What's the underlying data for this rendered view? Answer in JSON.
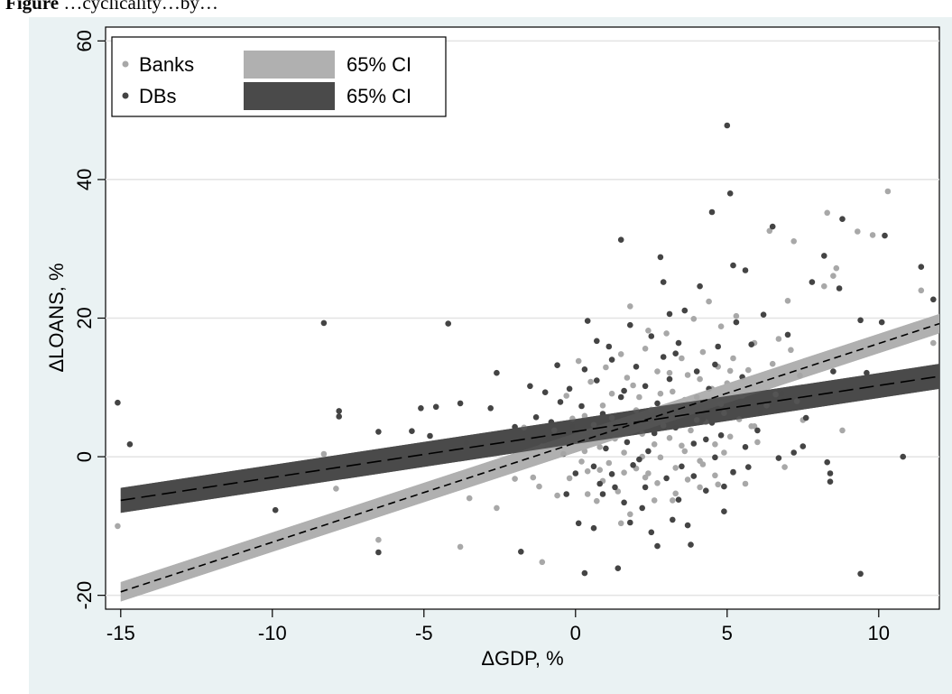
{
  "caption": {
    "bold": "Figure",
    "text": "…cyclicality…by…"
  },
  "chart_data": {
    "type": "scatter",
    "xlabel": "ΔGDP, %",
    "ylabel": "ΔLOANS, %",
    "xlim": [
      -15.5,
      12
    ],
    "ylim": [
      -22,
      62
    ],
    "xticks": [
      -15,
      -10,
      -5,
      0,
      5,
      10
    ],
    "yticks": [
      -20,
      0,
      20,
      40,
      60
    ],
    "grid": "horizontal",
    "legend_position": "top-left",
    "legend": [
      {
        "label": "Banks",
        "kind": "marker",
        "color": "#a8a8a8"
      },
      {
        "label": "65% CI",
        "kind": "band",
        "color": "#b0b0b0"
      },
      {
        "label": "DBs",
        "kind": "marker",
        "color": "#444444"
      },
      {
        "label": "65% CI",
        "kind": "band",
        "color": "#4a4a4a"
      }
    ],
    "series": [
      {
        "name": "Banks",
        "color": "#a8a8a8",
        "fit": {
          "x0": -15,
          "y0": -19.5,
          "x1": 12,
          "y1": 19.2,
          "ci_halfwidth": 1.4,
          "band_color": "#b0b0b0"
        },
        "points": [
          [
            -15.1,
            -10.0
          ],
          [
            -8.3,
            0.4
          ],
          [
            -7.9,
            -4.6
          ],
          [
            -6.5,
            -12.0
          ],
          [
            -6.2,
            -6.3
          ],
          [
            -4.7,
            -4.3
          ],
          [
            -4.1,
            -3.6
          ],
          [
            -3.8,
            -13.0
          ],
          [
            -3.5,
            -6.0
          ],
          [
            -2.6,
            -7.4
          ],
          [
            -2.0,
            -3.2
          ],
          [
            -1.4,
            -3.0
          ],
          [
            -1.1,
            -15.2
          ],
          [
            -0.6,
            -5.6
          ],
          [
            0.4,
            -5.4
          ],
          [
            0.7,
            -6.4
          ],
          [
            1.2,
            5.6
          ],
          [
            1.5,
            -9.6
          ],
          [
            1.8,
            -8.3
          ],
          [
            2.3,
            -3.0
          ],
          [
            2.7,
            -3.8
          ],
          [
            3.2,
            -6.3
          ],
          [
            3.7,
            -3.3
          ],
          [
            4.1,
            -4.4
          ],
          [
            4.7,
            -4.0
          ],
          [
            5.2,
            -2.3
          ],
          [
            -1.7,
            4.2
          ],
          [
            -1.1,
            1.5
          ],
          [
            -0.7,
            3.8
          ],
          [
            -0.3,
            8.8
          ],
          [
            -0.1,
            5.5
          ],
          [
            0.0,
            1.9
          ],
          [
            0.1,
            13.8
          ],
          [
            0.3,
            0.8
          ],
          [
            0.5,
            10.8
          ],
          [
            0.6,
            3.4
          ],
          [
            0.8,
            1.4
          ],
          [
            0.9,
            7.4
          ],
          [
            1.1,
            -0.9
          ],
          [
            1.2,
            9.1
          ],
          [
            1.3,
            2.6
          ],
          [
            1.5,
            14.8
          ],
          [
            1.6,
            0.6
          ],
          [
            1.7,
            11.4
          ],
          [
            1.8,
            21.7
          ],
          [
            1.9,
            5.1
          ],
          [
            2.0,
            -1.7
          ],
          [
            2.1,
            8.6
          ],
          [
            2.2,
            3.3
          ],
          [
            2.3,
            15.6
          ],
          [
            2.4,
            -2.4
          ],
          [
            2.5,
            6.8
          ],
          [
            2.6,
            1.8
          ],
          [
            2.7,
            12.3
          ],
          [
            2.8,
            -0.1
          ],
          [
            2.9,
            4.5
          ],
          [
            3.0,
            17.8
          ],
          [
            3.1,
            2.7
          ],
          [
            3.2,
            9.4
          ],
          [
            3.3,
            -1.6
          ],
          [
            3.4,
            6.0
          ],
          [
            3.5,
            14.2
          ],
          [
            3.6,
            0.8
          ],
          [
            3.7,
            11.8
          ],
          [
            3.8,
            3.8
          ],
          [
            3.9,
            19.9
          ],
          [
            4.0,
            7.8
          ],
          [
            4.1,
            -0.6
          ],
          [
            4.2,
            15.1
          ],
          [
            4.3,
            5.0
          ],
          [
            4.4,
            22.4
          ],
          [
            4.5,
            9.8
          ],
          [
            4.6,
            1.8
          ],
          [
            4.7,
            13.0
          ],
          [
            4.8,
            18.8
          ],
          [
            4.9,
            6.3
          ],
          [
            5.0,
            10.6
          ],
          [
            5.1,
            2.9
          ],
          [
            5.2,
            14.2
          ],
          [
            5.3,
            20.3
          ],
          [
            5.5,
            8.8
          ],
          [
            5.7,
            12.5
          ],
          [
            5.8,
            4.4
          ],
          [
            5.9,
            16.4
          ],
          [
            6.1,
            10.2
          ],
          [
            6.3,
            7.4
          ],
          [
            6.4,
            32.6
          ],
          [
            6.5,
            13.4
          ],
          [
            6.7,
            17.0
          ],
          [
            6.8,
            10.9
          ],
          [
            7.0,
            22.5
          ],
          [
            7.1,
            15.4
          ],
          [
            7.2,
            31.1
          ],
          [
            7.3,
            8.0
          ],
          [
            7.5,
            5.3
          ],
          [
            8.2,
            24.6
          ],
          [
            8.3,
            35.2
          ],
          [
            8.5,
            26.1
          ],
          [
            8.6,
            27.2
          ],
          [
            8.8,
            3.8
          ],
          [
            9.3,
            32.5
          ],
          [
            9.8,
            32.0
          ],
          [
            10.3,
            38.3
          ],
          [
            11.4,
            24.0
          ],
          [
            11.8,
            16.4
          ],
          [
            -1.2,
            -4.3
          ],
          [
            0.2,
            -0.7
          ],
          [
            0.9,
            -3.5
          ],
          [
            1.9,
            10.3
          ],
          [
            2.4,
            18.2
          ],
          [
            3.3,
            -5.3
          ],
          [
            4.1,
            11.2
          ],
          [
            4.8,
            7.6
          ],
          [
            5.6,
            -3.9
          ],
          [
            6.0,
            2.1
          ],
          [
            6.9,
            -1.5
          ],
          [
            0.4,
            -2.1
          ],
          [
            0.6,
            4.6
          ],
          [
            1.0,
            12.9
          ],
          [
            1.4,
            -5.0
          ],
          [
            2.0,
            6.7
          ],
          [
            2.6,
            -6.3
          ],
          [
            3.1,
            12.1
          ],
          [
            3.6,
            8.2
          ],
          [
            4.2,
            -1.1
          ],
          [
            4.9,
            0.6
          ],
          [
            5.4,
            5.4
          ],
          [
            -0.4,
            1.1
          ],
          [
            -0.2,
            -3.1
          ],
          [
            0.3,
            5.9
          ],
          [
            0.8,
            -1.9
          ],
          [
            1.1,
            3.9
          ],
          [
            1.6,
            -2.3
          ],
          [
            2.2,
            0.0
          ],
          [
            2.8,
            9.1
          ],
          [
            3.5,
            1.6
          ],
          [
            4.0,
            5.3
          ],
          [
            4.6,
            -2.7
          ],
          [
            5.1,
            12.4
          ],
          [
            5.9,
            4.4
          ],
          [
            6.6,
            9.0
          ]
        ]
      },
      {
        "name": "DBs",
        "color": "#444444",
        "fit": {
          "x0": -15,
          "y0": -6.3,
          "x1": 12,
          "y1": 11.6,
          "ci_halfwidth": 1.8,
          "band_color": "#4a4a4a"
        },
        "points": [
          [
            -15.1,
            7.8
          ],
          [
            -14.7,
            1.8
          ],
          [
            -9.9,
            -7.7
          ],
          [
            -8.3,
            19.3
          ],
          [
            -7.8,
            6.6
          ],
          [
            -7.8,
            5.8
          ],
          [
            -6.5,
            3.6
          ],
          [
            -6.5,
            -13.8
          ],
          [
            -5.4,
            3.7
          ],
          [
            -5.1,
            7.0
          ],
          [
            -4.8,
            3.0
          ],
          [
            -4.6,
            7.2
          ],
          [
            -4.2,
            19.2
          ],
          [
            -3.8,
            7.7
          ],
          [
            -3.6,
            2.0
          ],
          [
            -2.8,
            7.0
          ],
          [
            -2.6,
            12.1
          ],
          [
            -2.0,
            4.3
          ],
          [
            -1.8,
            -13.7
          ],
          [
            -1.5,
            10.2
          ],
          [
            -1.3,
            5.7
          ],
          [
            -1.0,
            9.3
          ],
          [
            -0.8,
            5.0
          ],
          [
            -0.6,
            13.2
          ],
          [
            -0.4,
            0.4
          ],
          [
            -0.3,
            -5.4
          ],
          [
            -0.2,
            9.8
          ],
          [
            -0.1,
            4.4
          ],
          [
            0.0,
            2.4
          ],
          [
            0.1,
            -9.6
          ],
          [
            0.2,
            7.3
          ],
          [
            0.3,
            -16.8
          ],
          [
            0.4,
            19.6
          ],
          [
            0.5,
            3.3
          ],
          [
            0.6,
            -1.4
          ],
          [
            0.7,
            11.0
          ],
          [
            0.8,
            -3.9
          ],
          [
            0.9,
            6.2
          ],
          [
            1.0,
            1.2
          ],
          [
            1.1,
            15.9
          ],
          [
            1.2,
            -2.5
          ],
          [
            1.3,
            4.7
          ],
          [
            1.4,
            -16.1
          ],
          [
            1.5,
            8.6
          ],
          [
            1.5,
            31.3
          ],
          [
            1.6,
            -6.6
          ],
          [
            1.7,
            2.1
          ],
          [
            1.8,
            19.0
          ],
          [
            1.9,
            -1.2
          ],
          [
            2.0,
            13.0
          ],
          [
            2.1,
            5.7
          ],
          [
            2.2,
            -7.4
          ],
          [
            2.3,
            10.2
          ],
          [
            2.4,
            0.8
          ],
          [
            2.5,
            17.4
          ],
          [
            2.6,
            3.4
          ],
          [
            2.7,
            -12.9
          ],
          [
            2.8,
            28.8
          ],
          [
            2.9,
            25.2
          ],
          [
            2.9,
            6.8
          ],
          [
            3.0,
            -3.1
          ],
          [
            3.1,
            11.2
          ],
          [
            3.2,
            -9.1
          ],
          [
            3.3,
            4.2
          ],
          [
            3.4,
            16.4
          ],
          [
            3.5,
            -1.4
          ],
          [
            3.6,
            21.1
          ],
          [
            3.7,
            7.3
          ],
          [
            3.8,
            -12.7
          ],
          [
            3.9,
            1.9
          ],
          [
            4.0,
            12.3
          ],
          [
            4.1,
            24.6
          ],
          [
            4.2,
            5.4
          ],
          [
            4.3,
            -4.9
          ],
          [
            4.4,
            9.8
          ],
          [
            4.5,
            35.3
          ],
          [
            4.6,
            -0.1
          ],
          [
            4.7,
            15.9
          ],
          [
            4.8,
            3.1
          ],
          [
            4.9,
            -7.9
          ],
          [
            5.0,
            47.8
          ],
          [
            5.1,
            38.0
          ],
          [
            5.2,
            27.6
          ],
          [
            5.3,
            19.4
          ],
          [
            5.4,
            7.5
          ],
          [
            5.5,
            11.5
          ],
          [
            5.6,
            26.9
          ],
          [
            5.6,
            1.4
          ],
          [
            5.8,
            16.2
          ],
          [
            6.0,
            3.8
          ],
          [
            6.2,
            20.5
          ],
          [
            6.5,
            33.2
          ],
          [
            6.8,
            9.1
          ],
          [
            7.0,
            17.6
          ],
          [
            7.2,
            0.6
          ],
          [
            7.4,
            11.7
          ],
          [
            7.8,
            25.2
          ],
          [
            8.2,
            29.0
          ],
          [
            8.5,
            12.3
          ],
          [
            8.7,
            24.3
          ],
          [
            8.8,
            34.3
          ],
          [
            9.4,
            -16.9
          ],
          [
            9.4,
            19.7
          ],
          [
            9.6,
            12.1
          ],
          [
            10.1,
            19.4
          ],
          [
            10.2,
            31.9
          ],
          [
            10.8,
            0.0
          ],
          [
            11.4,
            27.4
          ],
          [
            11.8,
            22.7
          ],
          [
            8.4,
            -3.6
          ],
          [
            8.4,
            -2.4
          ],
          [
            -0.9,
            2.6
          ],
          [
            -0.5,
            7.9
          ],
          [
            0.3,
            12.6
          ],
          [
            0.9,
            -5.4
          ],
          [
            1.6,
            9.5
          ],
          [
            2.3,
            -4.4
          ],
          [
            2.9,
            14.4
          ],
          [
            3.4,
            -6.2
          ],
          [
            4.0,
            8.6
          ],
          [
            4.6,
            13.3
          ],
          [
            5.2,
            -2.2
          ],
          [
            6.1,
            6.4
          ],
          [
            7.5,
            1.5
          ],
          [
            0.6,
            -10.3
          ],
          [
            1.2,
            14.0
          ],
          [
            1.8,
            -9.5
          ],
          [
            2.5,
            -10.9
          ],
          [
            3.1,
            20.6
          ],
          [
            3.7,
            -9.9
          ],
          [
            4.3,
            2.5
          ],
          [
            4.9,
            -4.3
          ],
          [
            0.0,
            -2.4
          ],
          [
            0.7,
            16.7
          ],
          [
            1.3,
            -4.4
          ],
          [
            2.1,
            -0.4
          ],
          [
            2.7,
            7.7
          ],
          [
            3.3,
            14.9
          ],
          [
            3.9,
            -2.8
          ],
          [
            4.5,
            4.9
          ],
          [
            5.7,
            -1.5
          ],
          [
            6.7,
            -0.2
          ],
          [
            7.6,
            5.6
          ],
          [
            8.3,
            -0.8
          ]
        ]
      }
    ]
  }
}
